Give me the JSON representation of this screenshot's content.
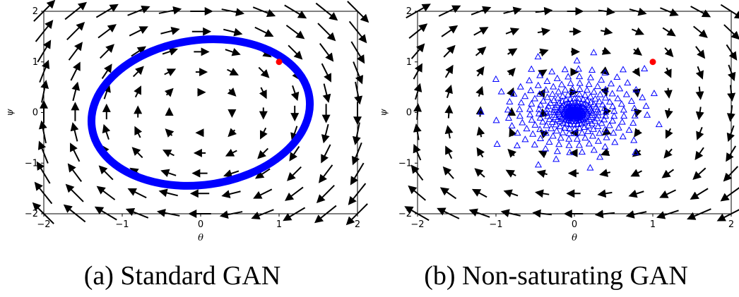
{
  "chart_data": [
    {
      "type": "vector_field",
      "caption": "(a) Standard GAN",
      "xlabel": "θ",
      "ylabel": "ψ",
      "xlim": [
        -2,
        2
      ],
      "ylim": [
        -2,
        2
      ],
      "xticks": [
        "−2",
        "−1",
        "0",
        "1",
        "2"
      ],
      "yticks": [
        "−2",
        "−1",
        "0",
        "1",
        "2"
      ],
      "field": "standard",
      "trajectory": {
        "shape": "ellipse",
        "marker": "circle",
        "color": "#0000ff",
        "cx": 0,
        "cy": 0,
        "rx": 1.4,
        "ry": 1.43,
        "tilt_deg": -8
      },
      "start_point": {
        "x": 1,
        "y": 1,
        "color": "#ff0000"
      }
    },
    {
      "type": "vector_field",
      "caption": "(b) Non-saturating GAN",
      "xlabel": "θ",
      "ylabel": "ψ",
      "xlim": [
        -2,
        2
      ],
      "ylim": [
        -2,
        2
      ],
      "xticks": [
        "−2",
        "−1",
        "0",
        "1",
        "2"
      ],
      "yticks": [
        "−2",
        "−1",
        "0",
        "1",
        "2"
      ],
      "field": "non_saturating",
      "trajectory": {
        "shape": "spiral",
        "marker": "triangle",
        "color": "#0000ff",
        "start": [
          1,
          1
        ],
        "turns": 14
      },
      "start_point": {
        "x": 1,
        "y": 1,
        "color": "#ff0000"
      }
    }
  ]
}
